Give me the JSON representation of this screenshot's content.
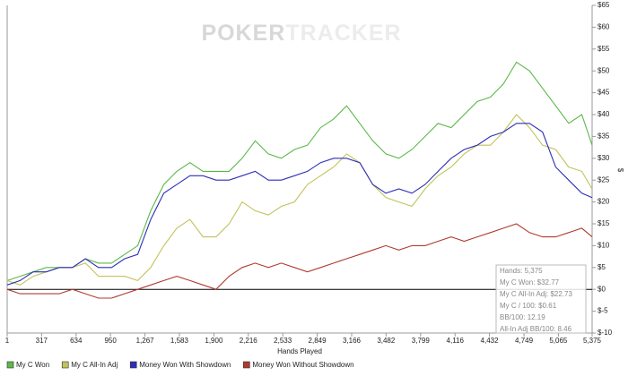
{
  "chart_data": {
    "type": "line",
    "watermark": [
      "POKER",
      "TRACKER"
    ],
    "xlabel": "Hands Played",
    "ylabel": "$",
    "x": [
      1,
      120,
      240,
      360,
      480,
      600,
      720,
      840,
      960,
      1080,
      1200,
      1320,
      1440,
      1560,
      1680,
      1800,
      1920,
      2040,
      2160,
      2280,
      2400,
      2520,
      2640,
      2760,
      2880,
      3000,
      3120,
      3240,
      3360,
      3480,
      3600,
      3720,
      3840,
      3960,
      4080,
      4200,
      4320,
      4440,
      4560,
      4680,
      4800,
      4920,
      5040,
      5160,
      5280,
      5375
    ],
    "series": [
      {
        "name": "My C Won",
        "color": "#5cb84a",
        "values": [
          2,
          3,
          4,
          5,
          5,
          5,
          7,
          6,
          6,
          8,
          10,
          18,
          24,
          27,
          29,
          27,
          27,
          27,
          30,
          34,
          31,
          30,
          32,
          33,
          37,
          39,
          42,
          38,
          34,
          31,
          30,
          32,
          35,
          38,
          37,
          40,
          43,
          44,
          47,
          52,
          50,
          46,
          42,
          38,
          40,
          33
        ]
      },
      {
        "name": "My C All-In Adj",
        "color": "#c2c25a",
        "values": [
          2,
          1,
          3,
          4,
          5,
          5,
          6,
          3,
          3,
          3,
          2,
          5,
          10,
          14,
          16,
          12,
          12,
          15,
          20,
          18,
          17,
          19,
          20,
          24,
          26,
          28,
          31,
          29,
          24,
          21,
          20,
          19,
          23,
          26,
          28,
          31,
          33,
          33,
          36,
          40,
          37,
          33,
          32,
          28,
          27,
          23
        ]
      },
      {
        "name": "Money Won With Showdown",
        "color": "#2e2eb8",
        "values": [
          1,
          2,
          4,
          4,
          5,
          5,
          7,
          5,
          5,
          7,
          8,
          16,
          22,
          24,
          26,
          26,
          25,
          25,
          26,
          27,
          25,
          25,
          26,
          27,
          29,
          30,
          30,
          29,
          24,
          22,
          23,
          22,
          24,
          27,
          30,
          32,
          33,
          35,
          36,
          38,
          38,
          36,
          28,
          25,
          22,
          21
        ]
      },
      {
        "name": "Money Won Without Showdown",
        "color": "#b03a2e",
        "values": [
          0,
          -1,
          -1,
          -1,
          -1,
          0,
          -1,
          -2,
          -2,
          -1,
          0,
          1,
          2,
          3,
          2,
          1,
          0,
          3,
          5,
          6,
          5,
          6,
          5,
          4,
          5,
          6,
          7,
          8,
          9,
          10,
          9,
          10,
          10,
          11,
          12,
          11,
          12,
          13,
          14,
          15,
          13,
          12,
          12,
          13,
          14,
          12
        ]
      }
    ],
    "xlim": [
      1,
      5375
    ],
    "xticks": [
      1,
      317,
      634,
      950,
      {
        "value": 1267,
        "label": "1,267"
      },
      {
        "value": 1583,
        "label": "1,583"
      },
      {
        "value": 1900,
        "label": "1,900"
      },
      {
        "value": 2216,
        "label": "2,216"
      },
      {
        "value": 2533,
        "label": "2,533"
      },
      {
        "value": 2849,
        "label": "2,849"
      },
      {
        "value": 3166,
        "label": "3,166"
      },
      {
        "value": 3482,
        "label": "3,482"
      },
      {
        "value": 3799,
        "label": "3,799"
      },
      {
        "value": 4116,
        "label": "4,116"
      },
      {
        "value": 4432,
        "label": "4,432"
      },
      {
        "value": 4749,
        "label": "4,749"
      },
      {
        "value": 5065,
        "label": "5,065"
      },
      {
        "value": 5375,
        "label": "5,375"
      }
    ],
    "ylim": [
      -10,
      65
    ],
    "yticks": [
      {
        "value": -10,
        "label": "$-10"
      },
      {
        "value": -5,
        "label": "$-5"
      },
      {
        "value": 0,
        "label": "$0"
      },
      {
        "value": 5,
        "label": "$5"
      },
      {
        "value": 10,
        "label": "$10"
      },
      {
        "value": 15,
        "label": "$15"
      },
      {
        "value": 20,
        "label": "$20"
      },
      {
        "value": 25,
        "label": "$25"
      },
      {
        "value": 30,
        "label": "$30"
      },
      {
        "value": 35,
        "label": "$35"
      },
      {
        "value": 40,
        "label": "$40"
      },
      {
        "value": 45,
        "label": "$45"
      },
      {
        "value": 50,
        "label": "$50"
      },
      {
        "value": 55,
        "label": "$55"
      },
      {
        "value": 60,
        "label": "$60"
      },
      {
        "value": 65,
        "label": "$65"
      }
    ],
    "zero_line": true,
    "info_box": [
      "Hands: 5,375",
      "My C Won: $32.77",
      "My C All-In Adj: $22.73",
      "My C / 100: $0.61",
      "BB/100: 12.19",
      "All-In Adj BB/100: 8.46"
    ]
  }
}
